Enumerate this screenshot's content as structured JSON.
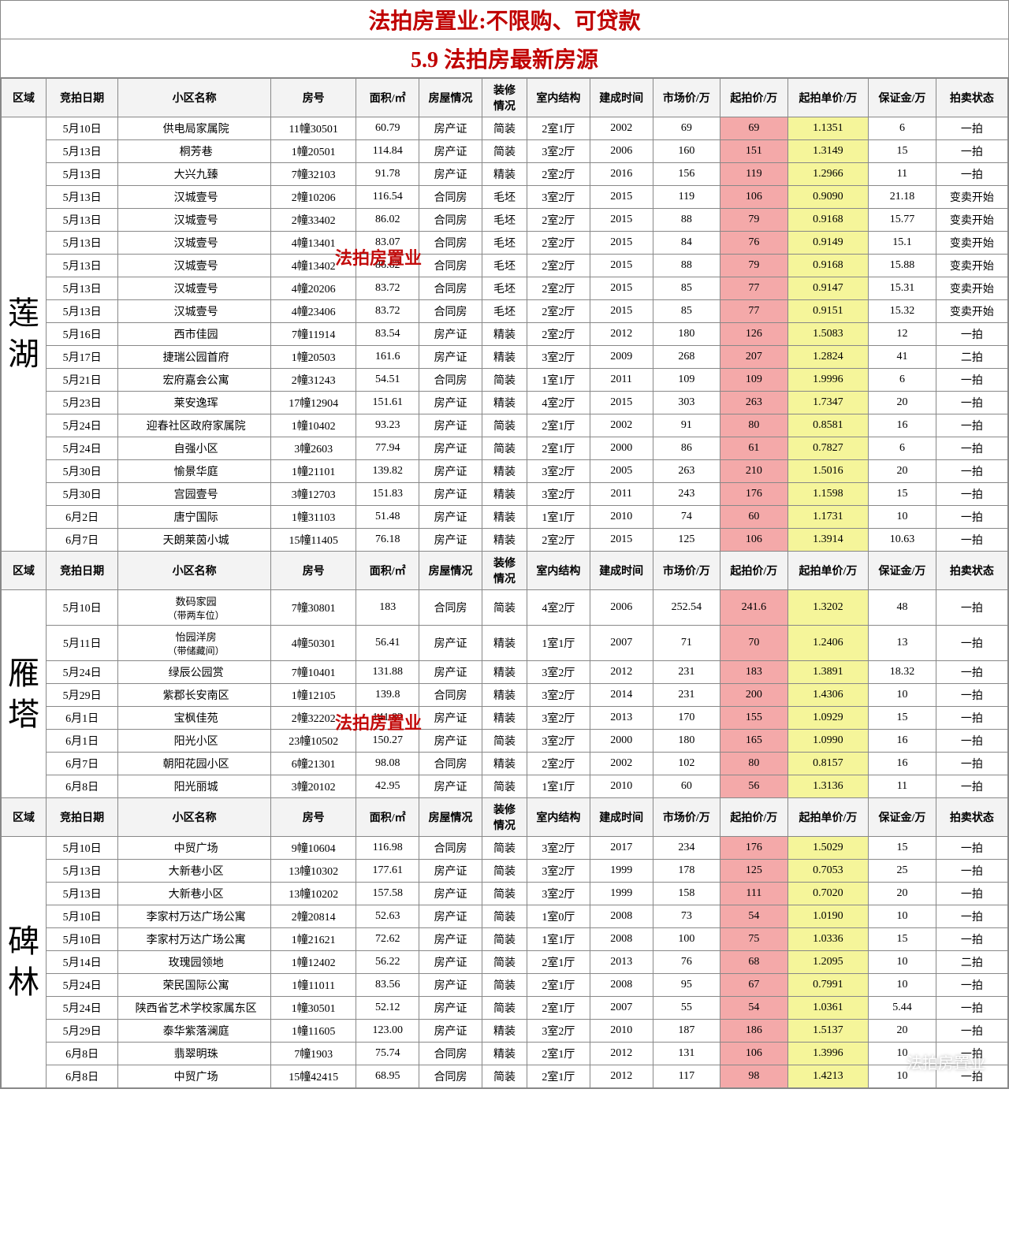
{
  "header": {
    "title1": "法拍房置业:不限购、可贷款",
    "title2": "5.9  法拍房最新房源"
  },
  "columns": [
    "区域",
    "竞拍日期",
    "小区名称",
    "房号",
    "面积/㎡",
    "房屋情况",
    "装修\n情况",
    "室内结构",
    "建成时间",
    "市场价/万",
    "起拍价/万",
    "起拍单价/万",
    "保证金/万",
    "拍卖状态"
  ],
  "watermarks": {
    "w1": "法拍房置业",
    "w2": "法拍房置业",
    "footer": "法拍房置业"
  },
  "sections": [
    {
      "region": "莲\n湖",
      "rows": [
        [
          "5月10日",
          "供电局家属院",
          "11幢30501",
          "60.79",
          "房产证",
          "简装",
          "2室1厅",
          "2002",
          "69",
          "69",
          "1.1351",
          "6",
          "一拍"
        ],
        [
          "5月13日",
          "桐芳巷",
          "1幢20501",
          "114.84",
          "房产证",
          "简装",
          "3室2厅",
          "2006",
          "160",
          "151",
          "1.3149",
          "15",
          "一拍"
        ],
        [
          "5月13日",
          "大兴九臻",
          "7幢32103",
          "91.78",
          "房产证",
          "精装",
          "2室2厅",
          "2016",
          "156",
          "119",
          "1.2966",
          "11",
          "一拍"
        ],
        [
          "5月13日",
          "汉城壹号",
          "2幢10206",
          "116.54",
          "合同房",
          "毛坯",
          "3室2厅",
          "2015",
          "119",
          "106",
          "0.9090",
          "21.18",
          "变卖开始"
        ],
        [
          "5月13日",
          "汉城壹号",
          "2幢33402",
          "86.02",
          "合同房",
          "毛坯",
          "2室2厅",
          "2015",
          "88",
          "79",
          "0.9168",
          "15.77",
          "变卖开始"
        ],
        [
          "5月13日",
          "汉城壹号",
          "4幢13401",
          "83.07",
          "合同房",
          "毛坯",
          "2室2厅",
          "2015",
          "84",
          "76",
          "0.9149",
          "15.1",
          "变卖开始"
        ],
        [
          "5月13日",
          "汉城壹号",
          "4幢13402",
          "86.62",
          "合同房",
          "毛坯",
          "2室2厅",
          "2015",
          "88",
          "79",
          "0.9168",
          "15.88",
          "变卖开始"
        ],
        [
          "5月13日",
          "汉城壹号",
          "4幢20206",
          "83.72",
          "合同房",
          "毛坯",
          "2室2厅",
          "2015",
          "85",
          "77",
          "0.9147",
          "15.31",
          "变卖开始"
        ],
        [
          "5月13日",
          "汉城壹号",
          "4幢23406",
          "83.72",
          "合同房",
          "毛坯",
          "2室2厅",
          "2015",
          "85",
          "77",
          "0.9151",
          "15.32",
          "变卖开始"
        ],
        [
          "5月16日",
          "西市佳园",
          "7幢11914",
          "83.54",
          "房产证",
          "精装",
          "2室2厅",
          "2012",
          "180",
          "126",
          "1.5083",
          "12",
          "一拍"
        ],
        [
          "5月17日",
          "捷瑞公园首府",
          "1幢20503",
          "161.6",
          "房产证",
          "精装",
          "3室2厅",
          "2009",
          "268",
          "207",
          "1.2824",
          "41",
          "二拍"
        ],
        [
          "5月21日",
          "宏府嘉会公寓",
          "2幢31243",
          "54.51",
          "合同房",
          "简装",
          "1室1厅",
          "2011",
          "109",
          "109",
          "1.9996",
          "6",
          "一拍"
        ],
        [
          "5月23日",
          "莱安逸珲",
          "17幢12904",
          "151.61",
          "房产证",
          "精装",
          "4室2厅",
          "2015",
          "303",
          "263",
          "1.7347",
          "20",
          "一拍"
        ],
        [
          "5月24日",
          "迎春社区政府家属院",
          "1幢10402",
          "93.23",
          "房产证",
          "简装",
          "2室1厅",
          "2002",
          "91",
          "80",
          "0.8581",
          "16",
          "一拍"
        ],
        [
          "5月24日",
          "自强小区",
          "3幢2603",
          "77.94",
          "房产证",
          "简装",
          "2室1厅",
          "2000",
          "86",
          "61",
          "0.7827",
          "6",
          "一拍"
        ],
        [
          "5月30日",
          "愉景华庭",
          "1幢21101",
          "139.82",
          "房产证",
          "精装",
          "3室2厅",
          "2005",
          "263",
          "210",
          "1.5016",
          "20",
          "一拍"
        ],
        [
          "5月30日",
          "宫园壹号",
          "3幢12703",
          "151.83",
          "房产证",
          "精装",
          "3室2厅",
          "2011",
          "243",
          "176",
          "1.1598",
          "15",
          "一拍"
        ],
        [
          "6月2日",
          "唐宁国际",
          "1幢31103",
          "51.48",
          "房产证",
          "精装",
          "1室1厅",
          "2010",
          "74",
          "60",
          "1.1731",
          "10",
          "一拍"
        ],
        [
          "6月7日",
          "天朗莱茵小城",
          "15幢11405",
          "76.18",
          "房产证",
          "精装",
          "2室2厅",
          "2015",
          "125",
          "106",
          "1.3914",
          "10.63",
          "一拍"
        ]
      ]
    },
    {
      "region": "雁\n塔",
      "rows": [
        [
          "5月10日",
          "数码家园\n（带两车位）",
          "7幢30801",
          "183",
          "合同房",
          "简装",
          "4室2厅",
          "2006",
          "252.54",
          "241.6",
          "1.3202",
          "48",
          "一拍"
        ],
        [
          "5月11日",
          "怡园洋房\n（带储藏间）",
          "4幢50301",
          "56.41",
          "房产证",
          "精装",
          "1室1厅",
          "2007",
          "71",
          "70",
          "1.2406",
          "13",
          "一拍"
        ],
        [
          "5月24日",
          "绿辰公园赏",
          "7幢10401",
          "131.88",
          "房产证",
          "精装",
          "3室2厅",
          "2012",
          "231",
          "183",
          "1.3891",
          "18.32",
          "一拍"
        ],
        [
          "5月29日",
          "紫郡长安南区",
          "1幢12105",
          "139.8",
          "合同房",
          "精装",
          "3室2厅",
          "2014",
          "231",
          "200",
          "1.4306",
          "10",
          "一拍"
        ],
        [
          "6月1日",
          "宝枫佳苑",
          "2幢32202",
          "141.82",
          "房产证",
          "精装",
          "3室2厅",
          "2013",
          "170",
          "155",
          "1.0929",
          "15",
          "一拍"
        ],
        [
          "6月1日",
          "阳光小区",
          "23幢10502",
          "150.27",
          "房产证",
          "简装",
          "3室2厅",
          "2000",
          "180",
          "165",
          "1.0990",
          "16",
          "一拍"
        ],
        [
          "6月7日",
          "朝阳花园小区",
          "6幢21301",
          "98.08",
          "合同房",
          "精装",
          "2室2厅",
          "2002",
          "102",
          "80",
          "0.8157",
          "16",
          "一拍"
        ],
        [
          "6月8日",
          "阳光丽城",
          "3幢20102",
          "42.95",
          "房产证",
          "简装",
          "1室1厅",
          "2010",
          "60",
          "56",
          "1.3136",
          "11",
          "一拍"
        ]
      ]
    },
    {
      "region": "碑\n林",
      "rows": [
        [
          "5月10日",
          "中贸广场",
          "9幢10604",
          "116.98",
          "合同房",
          "简装",
          "3室2厅",
          "2017",
          "234",
          "176",
          "1.5029",
          "15",
          "一拍"
        ],
        [
          "5月13日",
          "大新巷小区",
          "13幢10302",
          "177.61",
          "房产证",
          "简装",
          "3室2厅",
          "1999",
          "178",
          "125",
          "0.7053",
          "25",
          "一拍"
        ],
        [
          "5月13日",
          "大新巷小区",
          "13幢10202",
          "157.58",
          "房产证",
          "简装",
          "3室2厅",
          "1999",
          "158",
          "111",
          "0.7020",
          "20",
          "一拍"
        ],
        [
          "5月10日",
          "李家村万达广场公寓",
          "2幢20814",
          "52.63",
          "房产证",
          "简装",
          "1室0厅",
          "2008",
          "73",
          "54",
          "1.0190",
          "10",
          "一拍"
        ],
        [
          "5月10日",
          "李家村万达广场公寓",
          "1幢21621",
          "72.62",
          "房产证",
          "简装",
          "1室1厅",
          "2008",
          "100",
          "75",
          "1.0336",
          "15",
          "一拍"
        ],
        [
          "5月14日",
          "玫瑰园领地",
          "1幢12402",
          "56.22",
          "房产证",
          "简装",
          "2室1厅",
          "2013",
          "76",
          "68",
          "1.2095",
          "10",
          "二拍"
        ],
        [
          "5月24日",
          "荣民国际公寓",
          "1幢11011",
          "83.56",
          "房产证",
          "简装",
          "2室1厅",
          "2008",
          "95",
          "67",
          "0.7991",
          "10",
          "一拍"
        ],
        [
          "5月24日",
          "陕西省艺术学校家属东区",
          "1幢30501",
          "52.12",
          "房产证",
          "简装",
          "2室1厅",
          "2007",
          "55",
          "54",
          "1.0361",
          "5.44",
          "一拍"
        ],
        [
          "5月29日",
          "泰华紫落澜庭",
          "1幢11605",
          "123.00",
          "房产证",
          "精装",
          "3室2厅",
          "2010",
          "187",
          "186",
          "1.5137",
          "20",
          "一拍"
        ],
        [
          "6月8日",
          "翡翠明珠",
          "7幢1903",
          "75.74",
          "合同房",
          "精装",
          "2室1厅",
          "2012",
          "131",
          "106",
          "1.3996",
          "10",
          "一拍"
        ],
        [
          "6月8日",
          "中贸广场",
          "15幢42415",
          "68.95",
          "合同房",
          "简装",
          "2室1厅",
          "2012",
          "117",
          "98",
          "1.4213",
          "10",
          "一拍"
        ]
      ]
    }
  ]
}
